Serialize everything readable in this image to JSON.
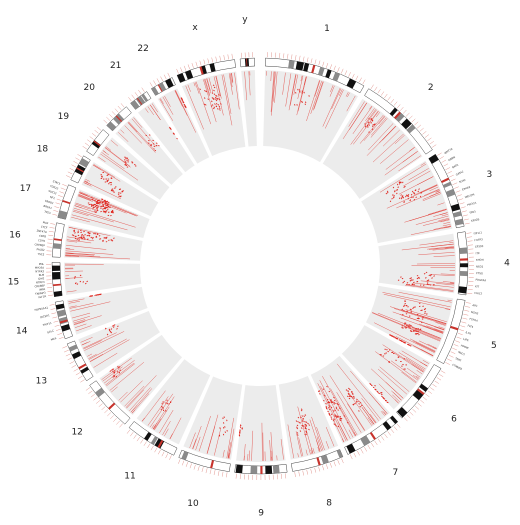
{
  "figure": {
    "chromosome_labels": [
      "1",
      "2",
      "3",
      "4",
      "5",
      "6",
      "7",
      "8",
      "9",
      "10",
      "11",
      "12",
      "13",
      "14",
      "15",
      "16",
      "17",
      "18",
      "19",
      "20",
      "21",
      "22",
      "x",
      "y"
    ],
    "gene_labels": {
      "3": [
        "WNT7A",
        "RBM6",
        "BAP1",
        "GATA2",
        "SOX2",
        "EPHA3",
        "MECOM",
        "PIK3CA",
        "TP63",
        "KAT2B"
      ],
      "4": [
        "FIP1L1",
        "FGFR3",
        "EP300",
        "ITK",
        "RHOH",
        "NSD2",
        "CTSG",
        "PDGFRA",
        "KIT",
        "CHIC2"
      ],
      "5": [
        "APC",
        "MSH3",
        "FGFR4",
        "FLT4",
        "IL7R",
        "LIFR",
        "HMMR",
        "NSD1",
        "TERT",
        "CTNND2"
      ],
      "15": [
        "IGF1R",
        "TNFAIP3",
        "IMPA",
        "CREBBP",
        "NTRK3",
        "IDH2",
        "BLM",
        "NTRK3",
        "MYO5A",
        "PML"
      ],
      "16": [
        "TSC2",
        "PALB2",
        "CREBBP",
        "CDH1",
        "CBFB",
        "ZNF479",
        "CTCF",
        "MAF"
      ],
      "17": [
        "TP53",
        "BRCA1",
        "ERBB2",
        "NF1",
        "SUZ12",
        "CDK12",
        "STAT3"
      ],
      "14": [
        "MAX",
        "GALC",
        "TRIP11",
        "DICER1",
        "HSP90AA1"
      ]
    },
    "palette": {
      "mutation": "#e0261f",
      "track_background": "#ececec",
      "gene_tick": "#d66a60",
      "ideogram_stain": "#111111",
      "centromere": "#c8332c"
    }
  }
}
